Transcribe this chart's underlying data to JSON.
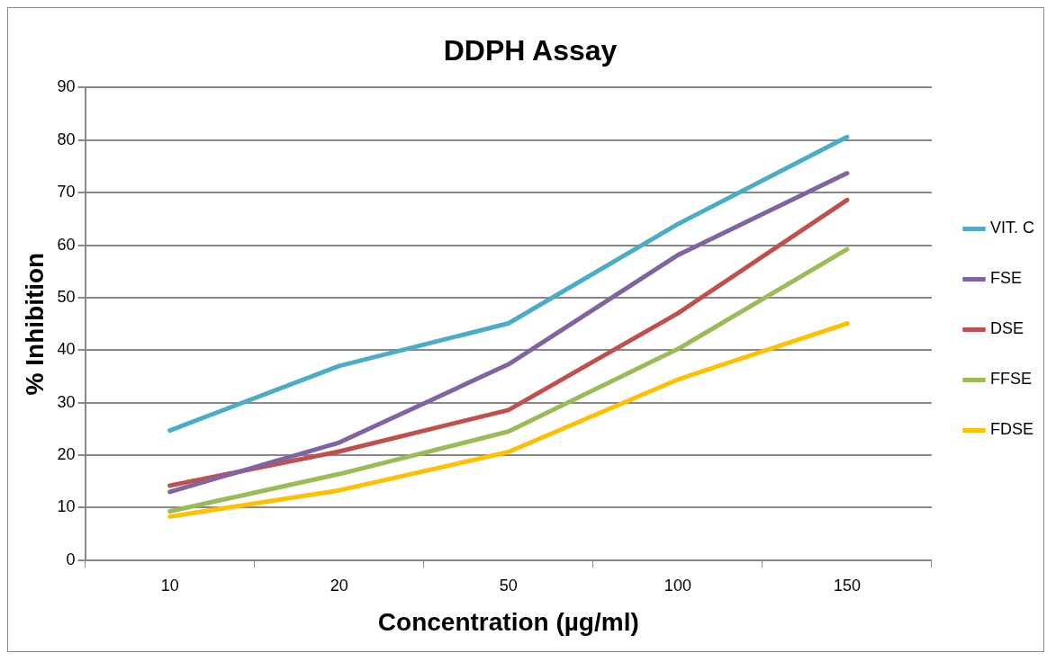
{
  "chart_data": {
    "type": "line",
    "title": "DDPH Assay",
    "xlabel": "Concentration (µg/ml)",
    "ylabel": "% Inhibition",
    "categories": [
      "10",
      "20",
      "50",
      "100",
      "150"
    ],
    "ylim": [
      0,
      90
    ],
    "yticks": [
      0,
      10,
      20,
      30,
      40,
      50,
      60,
      70,
      80,
      90
    ],
    "grid": "y",
    "legend": "right",
    "marker": "none",
    "line_style": "solid",
    "series": [
      {
        "name": "VIT. C",
        "color": "#4bacc6",
        "values": [
          24.7,
          37.0,
          45.1,
          64.0,
          80.6
        ]
      },
      {
        "name": "FSE",
        "color": "#8064a2",
        "values": [
          13.0,
          22.4,
          37.3,
          58.1,
          73.7
        ]
      },
      {
        "name": "DSE",
        "color": "#c0504d",
        "values": [
          14.2,
          20.7,
          28.6,
          47.0,
          68.6
        ]
      },
      {
        "name": "FFSE",
        "color": "#9bbb59",
        "values": [
          9.3,
          16.4,
          24.5,
          40.2,
          59.2
        ]
      },
      {
        "name": "FDSE",
        "color": "#ffc000",
        "values": [
          8.3,
          13.3,
          20.6,
          34.4,
          45.1
        ]
      }
    ]
  }
}
